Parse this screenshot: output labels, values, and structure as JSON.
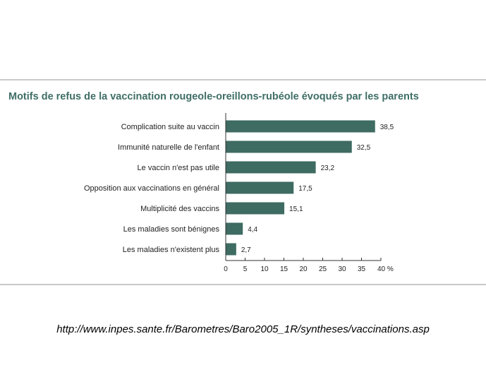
{
  "chart_data": {
    "type": "bar",
    "orientation": "horizontal",
    "title": "Motifs de refus de la vaccination rougeole-oreillons-rubéole évoqués par les parents",
    "categories": [
      "Complication suite au vaccin",
      "Immunité naturelle de l'enfant",
      "Le vaccin n'est pas utile",
      "Opposition aux vaccinations en général",
      "Multiplicité des vaccins",
      "Les maladies sont bénignes",
      "Les maladies n'existent plus"
    ],
    "values": [
      38.5,
      32.5,
      23.2,
      17.5,
      15.1,
      4.4,
      2.7
    ],
    "value_labels": [
      "38,5",
      "32,5",
      "23,2",
      "17,5",
      "15,1",
      "4,4",
      "2,7"
    ],
    "xlim": [
      0,
      40
    ],
    "x_ticks": [
      0,
      5,
      10,
      15,
      20,
      25,
      30,
      35,
      40
    ],
    "x_tick_labels": [
      "0",
      "5",
      "10",
      "15",
      "20",
      "25",
      "30",
      "35",
      "40 %"
    ],
    "xlabel": "",
    "ylabel": "",
    "grid": false,
    "legend": "none",
    "bar_color": "#3e6b62",
    "title_color": "#3f6e66"
  },
  "source": {
    "url": "http://www.inpes.sante.fr/Barometres/Baro2005_1R/syntheses/vaccinations.asp"
  }
}
